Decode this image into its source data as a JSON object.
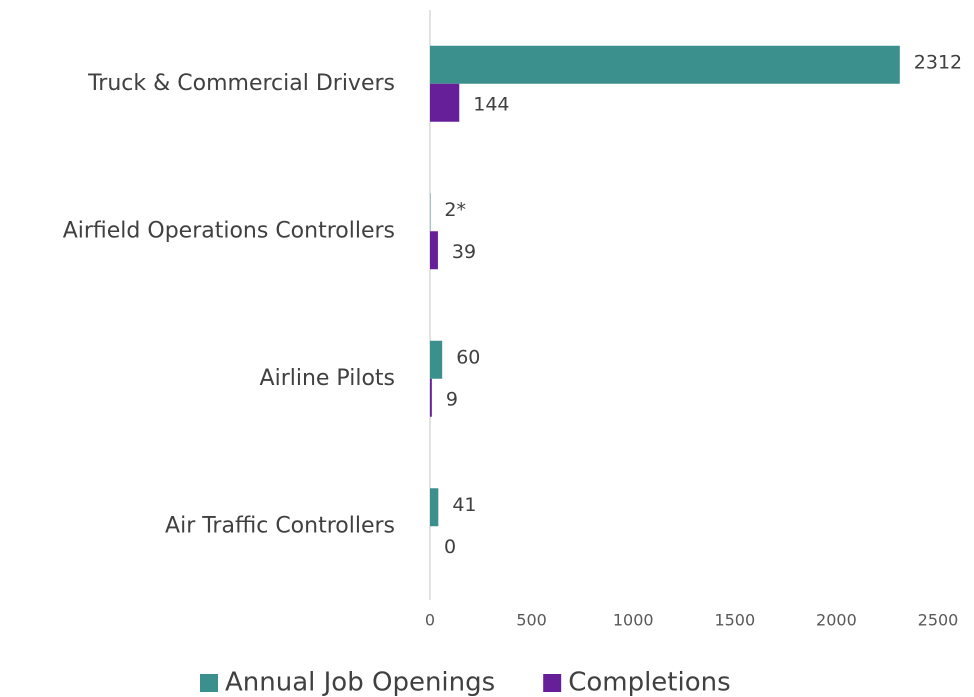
{
  "chart_data": {
    "type": "bar",
    "orientation": "horizontal",
    "categories": [
      "Truck & Commercial Drivers",
      "Airfield Operations Controllers",
      "Airline Pilots",
      "Air Traffic Controllers"
    ],
    "series": [
      {
        "name": "Annual Job Openings",
        "color": "#3b8f8c",
        "values": [
          2312,
          2,
          60,
          41
        ],
        "value_labels": [
          "2312",
          "2*",
          "60",
          "41"
        ]
      },
      {
        "name": "Completions",
        "color": "#661f99",
        "values": [
          144,
          39,
          9,
          0
        ]
      }
    ],
    "xlim": [
      0,
      2500
    ],
    "xticks": [
      0,
      500,
      1000,
      1500,
      2000,
      2500
    ],
    "legend": "bottom"
  }
}
